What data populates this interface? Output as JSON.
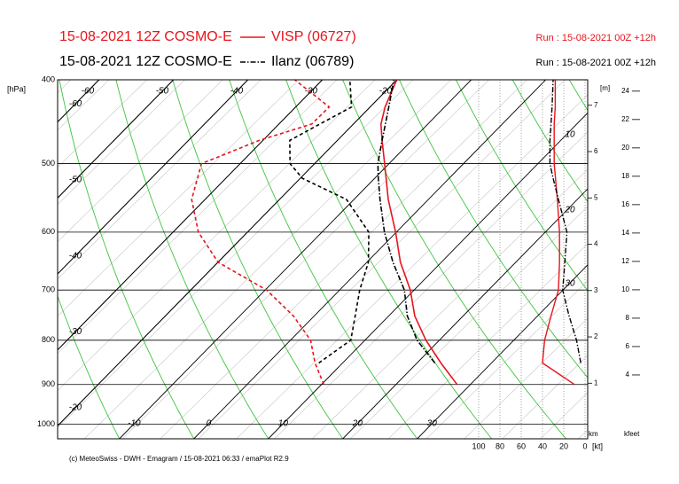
{
  "chart_data": {
    "type": "emagram",
    "ylabel": "[hPa]",
    "km_label": "[m]",
    "km_unit": "km",
    "kfeet_label": "kfeet",
    "wind_unit": "[kt]",
    "footer": "(c) MeteoSwiss - DWH - Emagram / 15-08-2021 06:33 / emaPlot R2.9",
    "ylim": [
      1040,
      400
    ],
    "log_y": true,
    "yticks": [
      400,
      500,
      600,
      700,
      800,
      900,
      1000
    ],
    "xlim": [
      -18.3,
      52.9
    ],
    "xticks": [
      -10,
      0,
      10,
      20,
      30
    ],
    "top_ticks": [
      -60,
      -50,
      -40,
      -30,
      -20
    ],
    "left_ticks": [
      -60,
      -50,
      -40,
      -30,
      -20
    ],
    "windlim": [
      110,
      -2.5
    ],
    "wind_ticks": [
      100,
      80,
      60,
      40,
      20,
      0
    ],
    "kmlim": [
      -0.2,
      7.55
    ],
    "km_ticks": [
      1,
      2,
      3,
      4,
      5,
      6,
      7
    ],
    "kfeetlim": [
      -0.5,
      24.8
    ],
    "kfeet_ticks": [
      4,
      6,
      8,
      10,
      12,
      14,
      16,
      18,
      20,
      22,
      24
    ],
    "annotations": [
      "10",
      "20",
      "30"
    ],
    "series": [
      {
        "name": "VISP (06727)",
        "model": "15-08-2021 12Z COSMO-E",
        "run": "Run : 15-08-2021 00Z +12h",
        "color": "#e8141c",
        "line": "solid",
        "pressure": [
          900,
          850,
          800,
          750,
          700,
          650,
          600,
          550,
          500,
          470,
          450,
          430,
          400
        ],
        "temperature": [
          28.2,
          23.2,
          18.2,
          13.5,
          9.5,
          4.5,
          -0.1,
          -5.4,
          -10.6,
          -14.0,
          -16.3,
          -18.0,
          -20.0
        ],
        "dewpoint": [
          10.3,
          6.3,
          2.7,
          -2.8,
          -9.8,
          -20,
          -26.6,
          -31.8,
          -35.2,
          -30.5,
          -25.6,
          -25.5,
          -33.7
        ],
        "wind": [
          10,
          40,
          38,
          32,
          25,
          24,
          24,
          26,
          29,
          29,
          29,
          28,
          28
        ]
      },
      {
        "name": "Ilanz (06789)",
        "model": "15-08-2021 12Z COSMO-E",
        "run": "Run : 15-08-2021 00Z +12h",
        "color": "#000000",
        "line": "dashdot",
        "pressure": [
          850,
          800,
          750,
          700,
          650,
          600,
          550,
          520,
          500,
          470,
          450,
          430,
          400
        ],
        "temperature": [
          22.4,
          17.0,
          12.5,
          8.7,
          3.5,
          -1.6,
          -6.5,
          -9.5,
          -11.5,
          -14.0,
          -15.7,
          -17.5,
          -20.4
        ],
        "dewpoint": [
          6.8,
          8.1,
          5.5,
          2.7,
          0.2,
          -3.7,
          -11.0,
          -19.7,
          -23.3,
          -26.4,
          -24.5,
          -22.5,
          -26.3
        ],
        "wind": [
          4,
          8,
          15,
          21,
          19,
          17,
          25,
          30,
          33,
          33,
          32,
          31,
          30
        ]
      }
    ]
  }
}
